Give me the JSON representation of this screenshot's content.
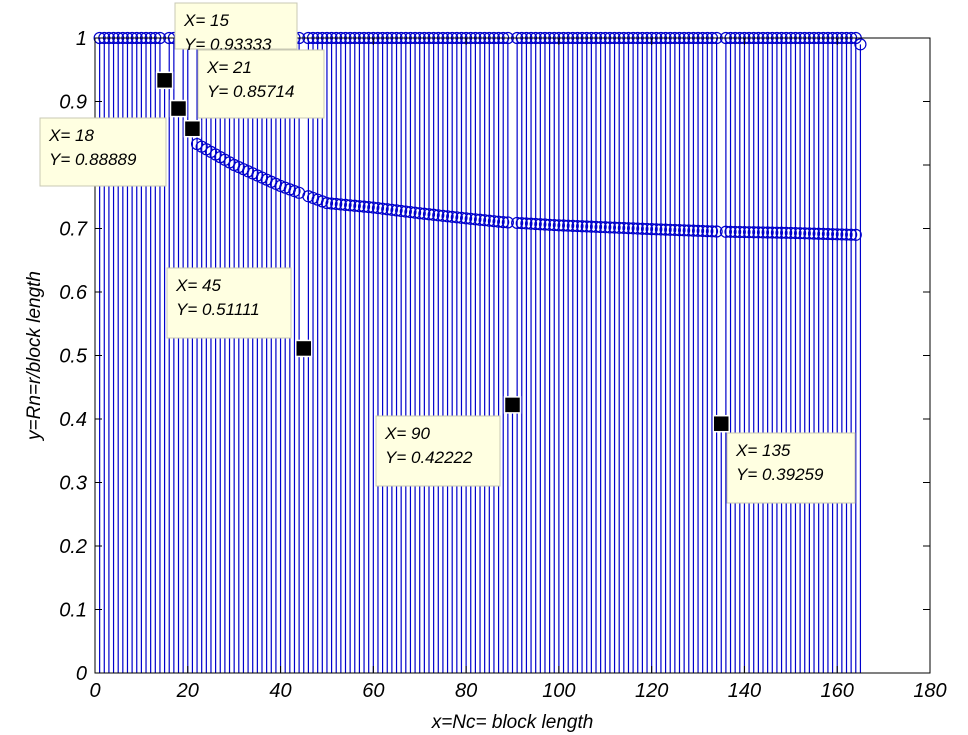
{
  "chart_data": {
    "type": "stem",
    "xlabel": "x=Nc= block length",
    "ylabel": "y=Rn=r/block length",
    "xlim": [
      0,
      180
    ],
    "ylim": [
      0,
      1
    ],
    "xticks": [
      "0",
      "20",
      "40",
      "60",
      "80",
      "100",
      "120",
      "140",
      "160",
      "180"
    ],
    "yticks": [
      "0",
      "0.1",
      "0.2",
      "0.3",
      "0.4",
      "0.5",
      "0.6",
      "0.7",
      "0.8",
      "0.9",
      "1"
    ],
    "grid": false,
    "series_color": "#0000cc",
    "series": [
      {
        "description": "Rn = r / Nc for each block length",
        "x_range": [
          1,
          165
        ],
        "y_upper_envelope": 1.0,
        "y_lower_envelope_points": [
          [
            22,
            0.833
          ],
          [
            30,
            0.8
          ],
          [
            40,
            0.767
          ],
          [
            50,
            0.74
          ],
          [
            60,
            0.733
          ],
          [
            70,
            0.724
          ],
          [
            80,
            0.716
          ],
          [
            88,
            0.71
          ],
          [
            100,
            0.705
          ],
          [
            120,
            0.699
          ],
          [
            135,
            0.695
          ],
          [
            150,
            0.693
          ],
          [
            164,
            0.69
          ]
        ],
        "y_at_165": 0.99
      }
    ],
    "datatips": [
      {
        "x": 15,
        "y": 0.93333,
        "label_x": "X= 15",
        "label_y": "Y= 0.93333"
      },
      {
        "x": 21,
        "y": 0.85714,
        "label_x": "X= 21",
        "label_y": "Y= 0.85714"
      },
      {
        "x": 18,
        "y": 0.88889,
        "label_x": "X= 18",
        "label_y": "Y= 0.88889"
      },
      {
        "x": 45,
        "y": 0.51111,
        "label_x": "X= 45",
        "label_y": "Y= 0.51111"
      },
      {
        "x": 90,
        "y": 0.42222,
        "label_x": "X= 90",
        "label_y": "Y= 0.42222"
      },
      {
        "x": 135,
        "y": 0.39259,
        "label_x": "X= 135",
        "label_y": "Y= 0.39259"
      }
    ]
  }
}
